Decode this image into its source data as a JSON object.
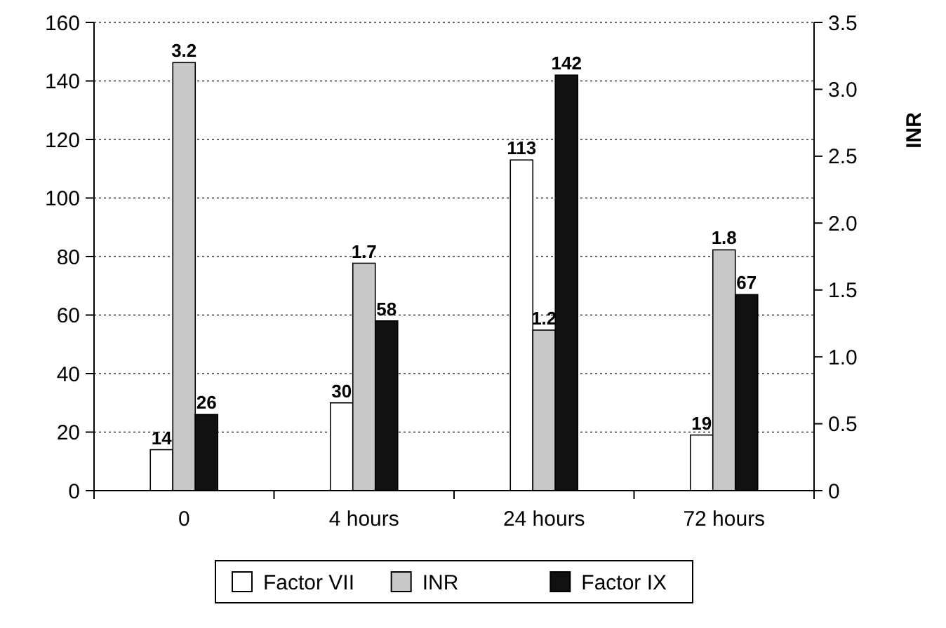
{
  "chart_data": {
    "type": "bar",
    "categories": [
      "0",
      "4 hours",
      "24 hours",
      "72 hours"
    ],
    "series": [
      {
        "name": "Factor VII",
        "color": "#ffffff",
        "values": [
          14,
          30,
          113,
          19
        ]
      },
      {
        "name": "INR",
        "color": "#c8c8c8",
        "values": [
          3.2,
          1.7,
          1.2,
          1.8
        ],
        "axis": "y2"
      },
      {
        "name": "Factor IX",
        "color": "#111111",
        "values": [
          26,
          58,
          142,
          67
        ]
      }
    ],
    "ylim": [
      0,
      160
    ],
    "yticks": [
      0,
      20,
      40,
      60,
      80,
      100,
      120,
      140,
      160
    ],
    "y2lim": [
      0,
      3.5
    ],
    "y2ticks": [
      0,
      {
        "value": 0.5,
        "label": "0.5"
      },
      {
        "value": 1,
        "label": "1.0"
      },
      {
        "value": 1.5,
        "label": "1.5"
      },
      {
        "value": 2,
        "label": "2.0"
      },
      {
        "value": 2.5,
        "label": "2.5"
      },
      {
        "value": 3,
        "label": "3.0"
      },
      {
        "value": 3.5,
        "label": "3.5"
      }
    ],
    "y2label": "INR",
    "grid": "y",
    "data_labels": true,
    "legend": "bottom"
  }
}
